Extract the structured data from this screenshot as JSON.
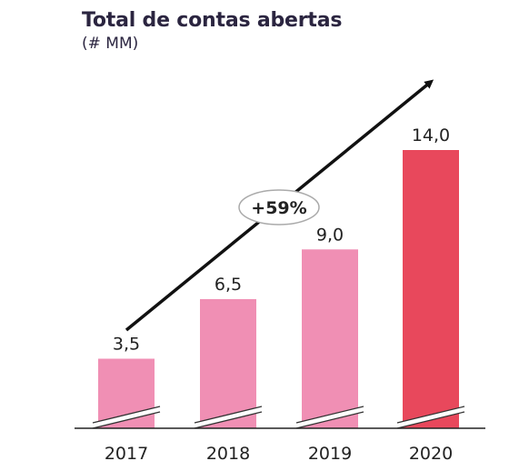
{
  "chart_data": {
    "type": "bar",
    "title": "Total de contas abertas",
    "subtitle": "(# MM)",
    "categories": [
      "2017",
      "2018",
      "2019",
      "2020"
    ],
    "values": [
      3.5,
      6.5,
      9.0,
      14.0
    ],
    "value_labels": [
      "3,5",
      "6,5",
      "9,0",
      "14,0"
    ],
    "ylim": [
      0,
      14.0
    ],
    "grid": false,
    "legend": "none",
    "annotation": {
      "text": "+59%",
      "type": "growth-arrow"
    },
    "colors": {
      "bar_default": "#f08fb4",
      "bar_highlight": "#e8485c",
      "text": "#222222",
      "title": "#2b2540",
      "axis": "#222222"
    }
  }
}
